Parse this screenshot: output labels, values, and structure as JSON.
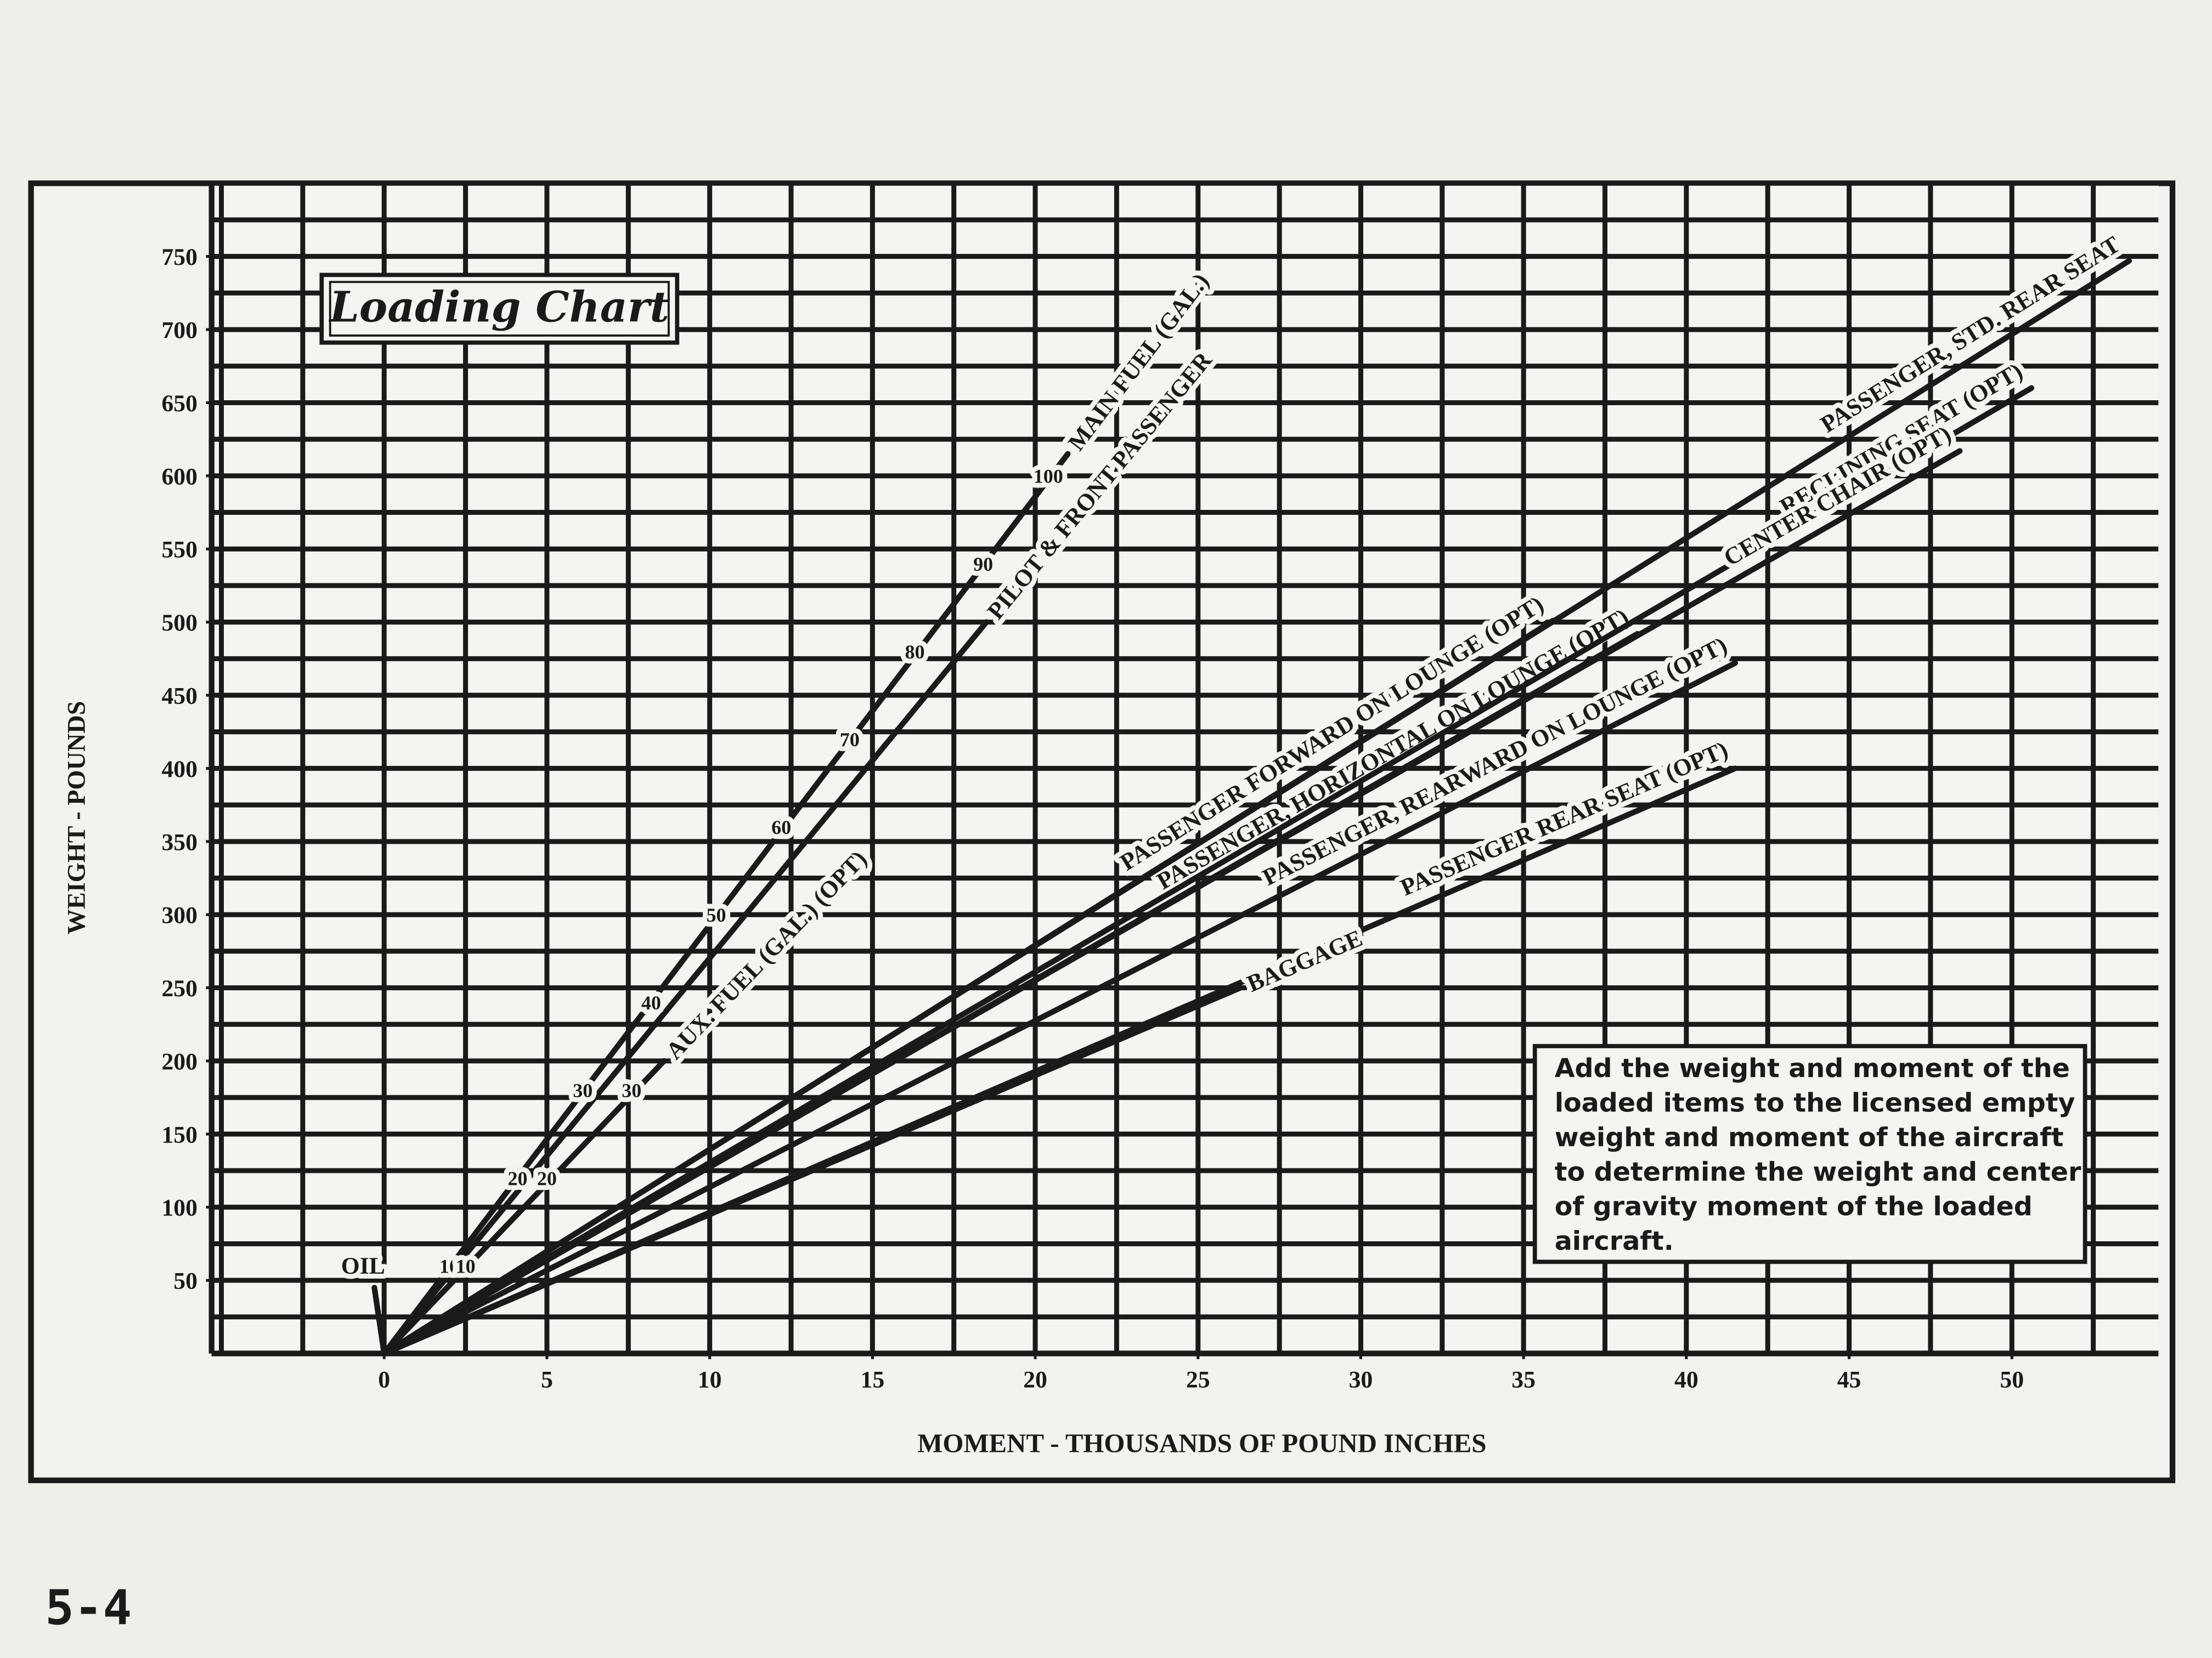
{
  "chart_data": {
    "type": "line",
    "title": "Loading Chart",
    "xlabel": "MOMENT - THOUSANDS OF POUND INCHES",
    "ylabel": "WEIGHT - POUNDS",
    "xlim": [
      -5.3,
      54.5
    ],
    "ylim": [
      0,
      800
    ],
    "xticks": [
      0,
      5,
      10,
      15,
      20,
      25,
      30,
      35,
      40,
      45,
      50
    ],
    "yticks": [
      50,
      100,
      150,
      200,
      250,
      300,
      350,
      400,
      450,
      500,
      550,
      600,
      650,
      700,
      750
    ],
    "grid": true,
    "grid_xstep": 2.5,
    "grid_ystep": 25,
    "series": [
      {
        "name": "MAIN FUEL (GAL.)",
        "color": "#1a1a1a",
        "x": [
          0,
          21
        ],
        "values": [
          0,
          615
        ]
      },
      {
        "name": "PILOT & FRONT PASSENGER",
        "color": "#1a1a1a",
        "x": [
          0,
          18.5
        ],
        "values": [
          0,
          500
        ]
      },
      {
        "name": "AUX. FUEL (GAL.) (OPT)",
        "color": "#1a1a1a",
        "x": [
          0,
          8.6
        ],
        "values": [
          0,
          200
        ]
      },
      {
        "name": "PASSENGER FORWARD ON LOUNGE (OPT)",
        "color": "#1a1a1a",
        "x": [
          0,
          35.9
        ],
        "values": [
          0,
          501
        ]
      },
      {
        "name": "PASSENGER, HORIZONTAL ON LOUNGE (OPT)",
        "color": "#1a1a1a",
        "x": [
          0,
          38.5
        ],
        "values": [
          0,
          492
        ]
      },
      {
        "name": "PASSENGER, REARWARD ON LOUNGE (OPT)",
        "color": "#1a1a1a",
        "x": [
          0,
          41.5
        ],
        "values": [
          0,
          472
        ]
      },
      {
        "name": "PASSENGER, STD. REAR SEAT",
        "color": "#1a1a1a",
        "x": [
          0,
          53.6
        ],
        "values": [
          0,
          747
        ]
      },
      {
        "name": "RECLINING SEAT (OPT)",
        "color": "#1a1a1a",
        "x": [
          0,
          50.6
        ],
        "values": [
          0,
          660
        ]
      },
      {
        "name": "CENTER CHAIR (OPT)",
        "color": "#1a1a1a",
        "x": [
          0,
          48.4
        ],
        "values": [
          0,
          617
        ]
      },
      {
        "name": "PASSENGER REAR SEAT (OPT)",
        "color": "#1a1a1a",
        "x": [
          0,
          41.5
        ],
        "values": [
          0,
          400
        ]
      },
      {
        "name": "BAGGAGE",
        "color": "#1a1a1a",
        "x": [
          0,
          26.3
        ],
        "values": [
          0,
          250
        ]
      },
      {
        "name": "OIL",
        "color": "#1a1a1a",
        "x": [
          0,
          -0.3
        ],
        "values": [
          0,
          45
        ]
      }
    ],
    "scales": [
      {
        "gallons": [
          10,
          20,
          30,
          40,
          50,
          60,
          70,
          80,
          90,
          100
        ],
        "x": [
          2.0,
          4.1,
          6.1,
          8.2,
          10.2,
          12.2,
          14.3,
          16.3,
          18.4,
          20.4
        ],
        "values": [
          60,
          120,
          180,
          240,
          300,
          360,
          420,
          480,
          540,
          600
        ]
      },
      {
        "gallons": [
          10,
          20,
          30
        ],
        "x": [
          2.5,
          5.0,
          7.6
        ],
        "values": [
          60,
          120,
          180
        ]
      }
    ],
    "note": [
      "Add the weight and moment of the",
      "loaded items to the licensed empty",
      "weight and moment of the aircraft",
      "to determine the weight and center",
      "of gravity moment of the loaded",
      "aircraft."
    ]
  },
  "page": {
    "number": "5-4"
  }
}
